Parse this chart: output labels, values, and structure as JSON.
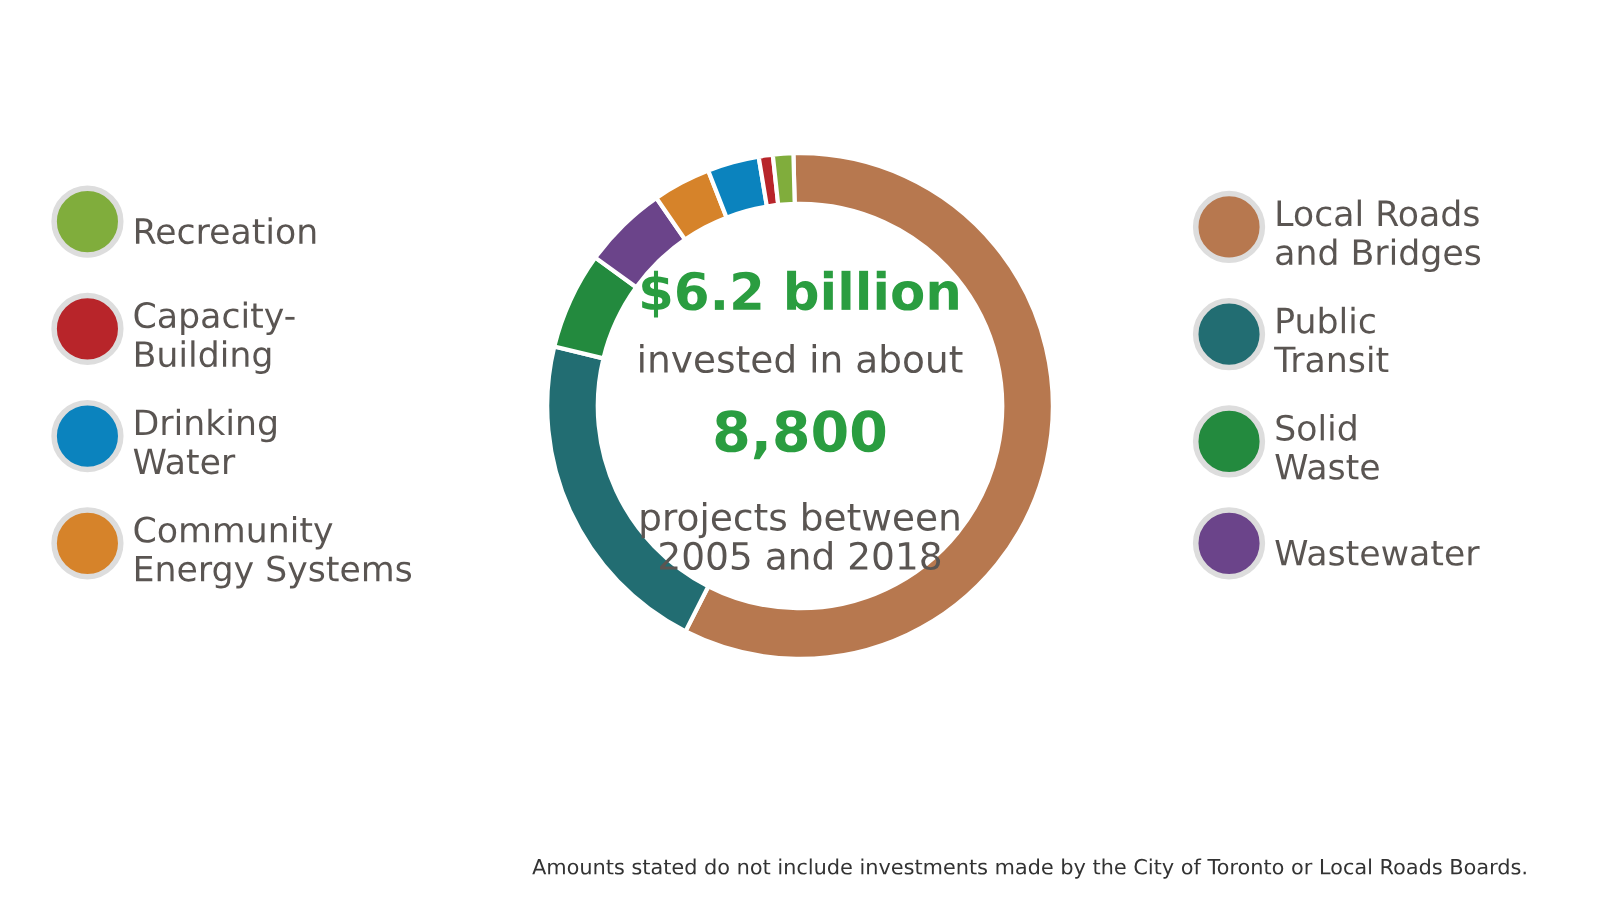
{
  "chart_data": {
    "type": "donut",
    "categories": [
      "Local Roads\nand Bridges",
      "Public\nTransit",
      "Solid\nWaste",
      "Wastewater",
      "Community\nEnergy Systems",
      "Drinking\nWater",
      "Capacity-\nBuilding",
      "Recreation"
    ],
    "values": [
      57.9,
      21.3,
      6.2,
      5.4,
      3.7,
      3.3,
      0.9,
      1.3
    ],
    "colors": [
      "#b7784f",
      "#226d72",
      "#238a3e",
      "#6b448a",
      "#d6832a",
      "#0b83be",
      "#b8252a",
      "#80ad3c"
    ],
    "legend": "top",
    "annotations": [
      "$6.2 billion",
      "invested in about",
      "8,800",
      "projects between\n2005 and 2018",
      "Amounts stated do not include investments made by the City of Toronto or Local Roads Boards."
    ]
  }
}
